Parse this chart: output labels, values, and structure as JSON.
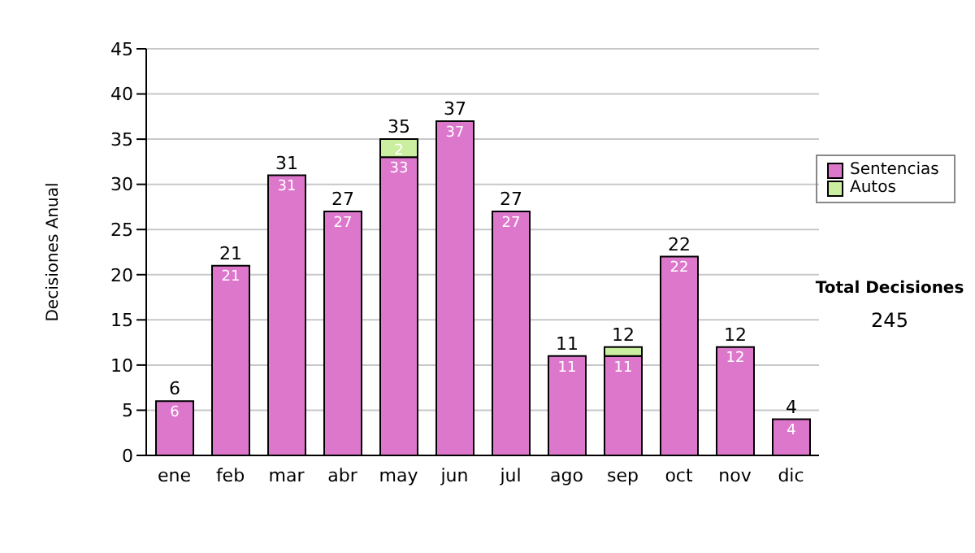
{
  "chart_data": {
    "type": "bar",
    "stacked": true,
    "ylabel": "Decisiones Anual",
    "categories": [
      "ene",
      "feb",
      "mar",
      "abr",
      "may",
      "jun",
      "jul",
      "ago",
      "sep",
      "oct",
      "nov",
      "dic"
    ],
    "series": [
      {
        "name": "Sentencias",
        "color": "#dd77cc",
        "values": [
          6,
          21,
          31,
          27,
          33,
          37,
          27,
          11,
          11,
          22,
          12,
          4
        ],
        "value_labels": [
          "6",
          "21",
          "31",
          "27",
          "33",
          "37",
          "27",
          "11",
          "11",
          "22",
          "12",
          "4"
        ]
      },
      {
        "name": "Autos",
        "color": "#cceea0",
        "values": [
          0,
          0,
          0,
          0,
          2,
          0,
          0,
          0,
          1,
          0,
          0,
          0
        ],
        "value_labels": [
          null,
          null,
          null,
          null,
          "2",
          null,
          null,
          null,
          null,
          null,
          null,
          null
        ]
      }
    ],
    "totals": [
      "6",
      "21",
      "31",
      "27",
      "35",
      "37",
      "27",
      "11",
      "12",
      "22",
      "12",
      "4"
    ],
    "ylim": [
      0,
      45
    ],
    "yticks": [
      0,
      5,
      10,
      15,
      20,
      25,
      30,
      35,
      40,
      45
    ],
    "grid": "y",
    "legend": "right",
    "annotations": [
      "Total Decisiones",
      "245"
    ]
  }
}
